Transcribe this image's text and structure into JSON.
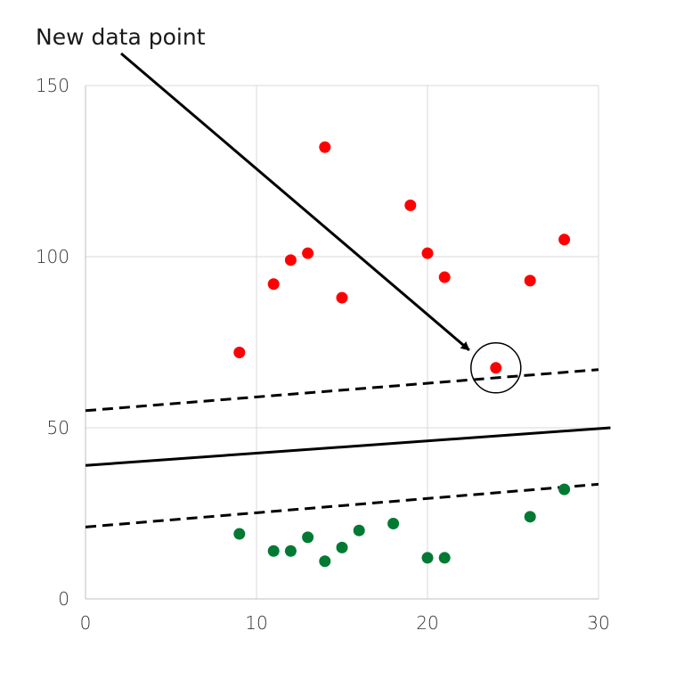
{
  "chart_data": {
    "type": "scatter",
    "title": "",
    "xlabel": "",
    "ylabel": "",
    "xlim": [
      0,
      30
    ],
    "ylim": [
      0,
      150
    ],
    "x_ticks": [
      0,
      10,
      20,
      30
    ],
    "y_ticks": [
      0,
      50,
      100,
      150
    ],
    "grid": true,
    "legend": "none",
    "series": [
      {
        "color": "#ff0000",
        "points": [
          {
            "x": 9,
            "y": 72
          },
          {
            "x": 11,
            "y": 92
          },
          {
            "x": 12,
            "y": 99
          },
          {
            "x": 13,
            "y": 101
          },
          {
            "x": 14,
            "y": 132
          },
          {
            "x": 15,
            "y": 88
          },
          {
            "x": 19,
            "y": 115
          },
          {
            "x": 20,
            "y": 101
          },
          {
            "x": 21,
            "y": 94
          },
          {
            "x": 24,
            "y": 67.5
          },
          {
            "x": 26,
            "y": 93
          },
          {
            "x": 28,
            "y": 105
          }
        ]
      },
      {
        "color": "#007a33",
        "points": [
          {
            "x": 9,
            "y": 19
          },
          {
            "x": 11,
            "y": 14
          },
          {
            "x": 12,
            "y": 14
          },
          {
            "x": 13,
            "y": 18
          },
          {
            "x": 14,
            "y": 11
          },
          {
            "x": 15,
            "y": 15
          },
          {
            "x": 16,
            "y": 20
          },
          {
            "x": 18,
            "y": 22
          },
          {
            "x": 20,
            "y": 12
          },
          {
            "x": 21,
            "y": 12
          },
          {
            "x": 26,
            "y": 24
          },
          {
            "x": 28,
            "y": 32
          }
        ]
      }
    ],
    "lines": [
      {
        "style": "solid",
        "from": [
          0,
          39
        ],
        "to": [
          30.7,
          50
        ]
      },
      {
        "style": "dashed",
        "from": [
          0,
          55
        ],
        "to": [
          30,
          67
        ]
      },
      {
        "style": "dashed",
        "from": [
          0,
          21
        ],
        "to": [
          30,
          33.5
        ]
      }
    ],
    "annotation": {
      "text": "New data point",
      "target": {
        "x": 24,
        "y": 67.5
      },
      "circled": true
    }
  }
}
